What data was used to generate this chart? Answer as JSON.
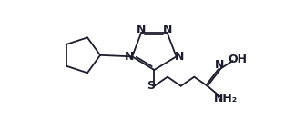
{
  "bg_color": "#ffffff",
  "line_color": "#1c1c2e",
  "lw": 1.3,
  "font_size": 9,
  "dpi": 100,
  "figsize": [
    3.35,
    1.41
  ],
  "xlim": [
    0.0,
    3.35
  ],
  "ylim": [
    0.0,
    1.41
  ]
}
